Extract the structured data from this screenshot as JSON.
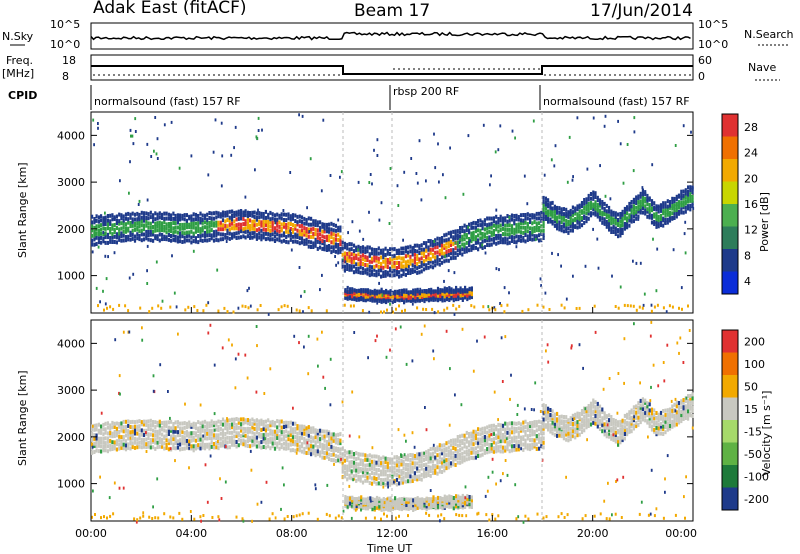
{
  "header": {
    "station": "Adak East (fitACF)",
    "beam": "Beam 17",
    "date": "17/Jun/2014"
  },
  "strip_labels": {
    "nsky": "N.Sky",
    "nsearch": "N.Search",
    "nsky_ticks": [
      "10^5",
      "10^0"
    ],
    "nsearch_ticks": [
      "10^5",
      "10^0"
    ],
    "freq": "Freq.",
    "freq_unit": "[MHz]",
    "nave": "Nave",
    "cpid": "CPID",
    "freq_ticks": [
      "18",
      "8"
    ],
    "nave_ticks": [
      "60",
      "0"
    ]
  },
  "cpid_segments": [
    "normalsound (fast) 157 RF",
    "rbsp 200 RF",
    "normalsound (fast) 157 RF"
  ],
  "colors": {
    "weak": "#1e3a8a",
    "mid": "#2f9e44",
    "strong": "#f2a900",
    "peak": "#e03131",
    "ground": "#c8c8c0"
  },
  "chart_data": [
    {
      "type": "heatmap",
      "title": "Power",
      "ylabel": "Slant Range [km]",
      "xlabel": "Time UT",
      "ylim": [
        200,
        4500
      ],
      "yticks": [
        "4000",
        "3000",
        "2000",
        "1000"
      ],
      "x_ticks": [
        "00:00",
        "04:00",
        "08:00",
        "12:00",
        "16:00",
        "20:00",
        "00:00"
      ],
      "colorbar": {
        "label": "Power [dB]",
        "ticks": [
          "28",
          "24",
          "20",
          "16",
          "12",
          "8",
          "4"
        ],
        "colors": [
          "#0b2dd8",
          "#1e3a8a",
          "#2e7d5b",
          "#4caf50",
          "#c8d600",
          "#f2a900",
          "#f07000",
          "#e03131"
        ]
      },
      "bands": [
        {
          "name": "main",
          "x": [
            0,
            2,
            4,
            6,
            8,
            9.9,
            10,
            11,
            12,
            13,
            14,
            15,
            16,
            17,
            18
          ],
          "y": [
            2000,
            2100,
            2050,
            2150,
            2050,
            1800,
            1450,
            1350,
            1300,
            1400,
            1600,
            1850,
            2000,
            2050,
            2100
          ]
        },
        {
          "name": "far",
          "x": [
            18,
            18.5,
            19,
            19.5,
            20,
            20.5,
            21,
            21.5,
            22,
            22.5,
            23,
            23.5,
            24
          ],
          "y": [
            2500,
            2300,
            2200,
            2350,
            2600,
            2300,
            2100,
            2400,
            2650,
            2300,
            2400,
            2600,
            2750
          ]
        },
        {
          "name": "near",
          "x": [
            10.1,
            11,
            12,
            13,
            14,
            15.2
          ],
          "y": [
            650,
            620,
            600,
            610,
            640,
            660
          ]
        }
      ]
    },
    {
      "type": "heatmap",
      "title": "Velocity",
      "ylabel": "Slant Range [km]",
      "xlabel": "Time UT",
      "ylim": [
        200,
        4500
      ],
      "yticks": [
        "4000",
        "3000",
        "2000",
        "1000"
      ],
      "x_ticks": [
        "00:00",
        "04:00",
        "08:00",
        "12:00",
        "16:00",
        "20:00",
        "00:00"
      ],
      "colorbar": {
        "label": "Velocity [m s⁻¹]",
        "ticks": [
          "200",
          "100",
          "50",
          "15",
          "-15",
          "-50",
          "-100",
          "-200"
        ],
        "colors": [
          "#1e3a8a",
          "#1e7a3a",
          "#5fb244",
          "#a6d96a",
          "#c8c8c0",
          "#f2a900",
          "#f07000",
          "#e03131"
        ]
      }
    }
  ]
}
